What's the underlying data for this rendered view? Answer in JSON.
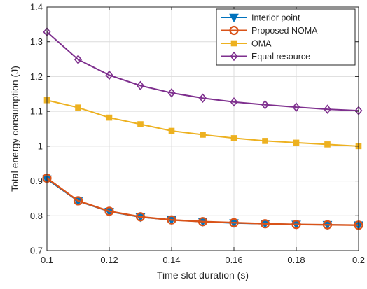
{
  "chart_data": {
    "type": "line",
    "title": "",
    "xlabel": "Time slot duration (s)",
    "ylabel": "Total energy consumption (J)",
    "xlim": [
      0.1,
      0.2
    ],
    "ylim": [
      0.7,
      1.4
    ],
    "xticks": [
      0.1,
      0.12,
      0.14,
      0.16,
      0.18,
      0.2
    ],
    "xtick_labels": [
      "0.1",
      "0.12",
      "0.14",
      "0.16",
      "0.18",
      "0.2"
    ],
    "yticks": [
      0.7,
      0.8,
      0.9,
      1.0,
      1.1,
      1.2,
      1.3,
      1.4
    ],
    "ytick_labels": [
      "0.7",
      "0.8",
      "0.9",
      "1",
      "1.1",
      "1.2",
      "1.3",
      "1.4"
    ],
    "grid": true,
    "legend_position": "top-right",
    "x": [
      0.1,
      0.11,
      0.12,
      0.13,
      0.14,
      0.15,
      0.16,
      0.17,
      0.18,
      0.19,
      0.2
    ],
    "series": [
      {
        "name": "Interior point",
        "color": "#0072BD",
        "marker": "triangle-down",
        "values": [
          0.905,
          0.842,
          0.812,
          0.796,
          0.788,
          0.783,
          0.779,
          0.777,
          0.775,
          0.774,
          0.773
        ]
      },
      {
        "name": "Proposed NOMA",
        "color": "#D95319",
        "marker": "circle",
        "values": [
          0.908,
          0.843,
          0.813,
          0.797,
          0.788,
          0.783,
          0.78,
          0.777,
          0.775,
          0.774,
          0.773
        ]
      },
      {
        "name": "OMA",
        "color": "#EDB120",
        "marker": "square",
        "values": [
          1.132,
          1.111,
          1.082,
          1.063,
          1.044,
          1.033,
          1.023,
          1.015,
          1.01,
          1.005,
          1.0
        ]
      },
      {
        "name": "Equal resource",
        "color": "#7E2F8E",
        "marker": "diamond",
        "values": [
          1.328,
          1.249,
          1.204,
          1.174,
          1.153,
          1.138,
          1.127,
          1.119,
          1.112,
          1.106,
          1.102
        ]
      }
    ]
  }
}
